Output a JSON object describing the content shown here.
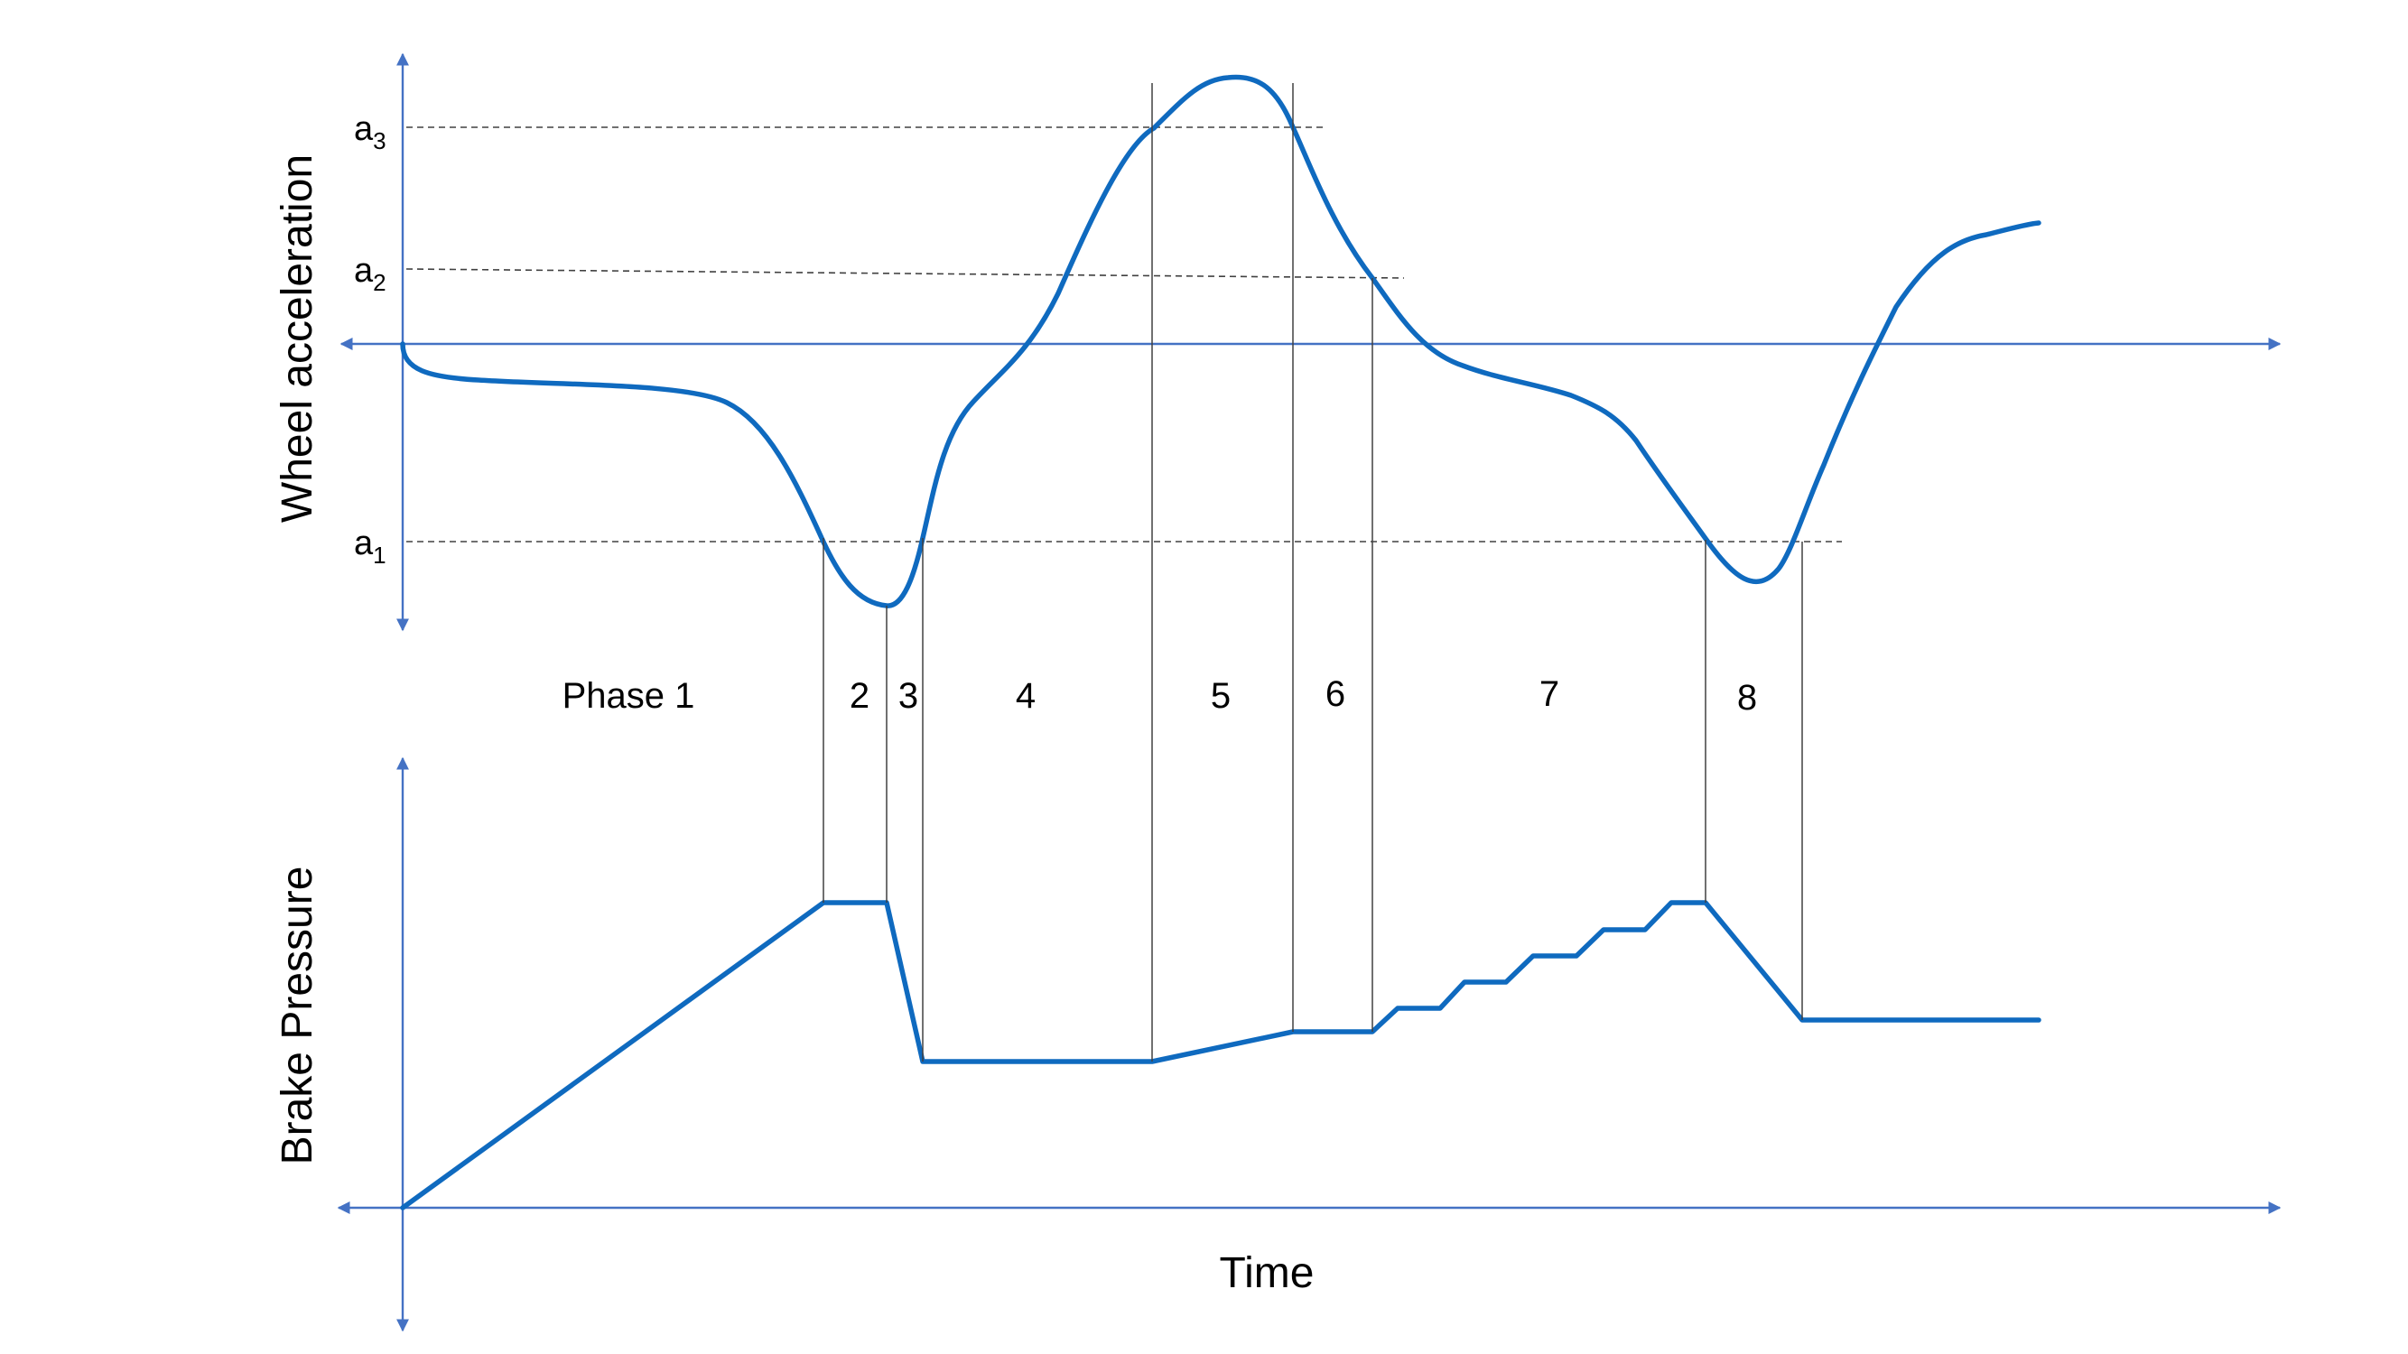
{
  "axes": {
    "upper_ylabel": "Wheel acceleration",
    "lower_ylabel": "Brake Pressure",
    "xlabel": "Time"
  },
  "thresholds": [
    {
      "base": "a",
      "sub": "3"
    },
    {
      "base": "a",
      "sub": "2"
    },
    {
      "base": "a",
      "sub": "1"
    }
  ],
  "phases": [
    "Phase 1",
    "2",
    "3",
    "4",
    "5",
    "6",
    "7",
    "8"
  ],
  "colors": {
    "axis": "#4472C4",
    "curve": "#0F6ABF",
    "guide": "#404040"
  }
}
